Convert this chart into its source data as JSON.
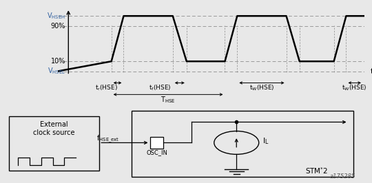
{
  "bg_color": "#e8e8e8",
  "panel_bg": "#ffffff",
  "waveform": {
    "vhigh": 1.0,
    "v90": 0.82,
    "v10": 0.22,
    "vlow": 0.05,
    "color": "#000000",
    "lw": 1.8,
    "dashed_color": "#999999"
  },
  "labels": {
    "VHSEH": "V$_\\mathregular{HSEH}$",
    "VHSEL": "V$_\\mathregular{HSEL}$",
    "t_label": "t",
    "90pct": "90%",
    "10pct": "10%",
    "tr": "t$_\\mathregular{r}$(HSE)",
    "tf": "t$_\\mathregular{f}$(HSE)",
    "tW1": "t$_\\mathregular{W}$(HSE)",
    "tW2": "t$_\\mathregular{W}$(HSE)",
    "THSE": "T$_\\mathregular{HSE}$"
  },
  "circuit": {
    "box_color": "#000000",
    "ext_label": "External\nclock source",
    "fhse_label": "f$_\\mathregular{HSE\\_ext}$",
    "osc_label": "OSC_IN",
    "stm_label": "STM$^{*}$2",
    "IL_label": "I$_\\mathregular{L}$"
  },
  "watermark": "a175285"
}
